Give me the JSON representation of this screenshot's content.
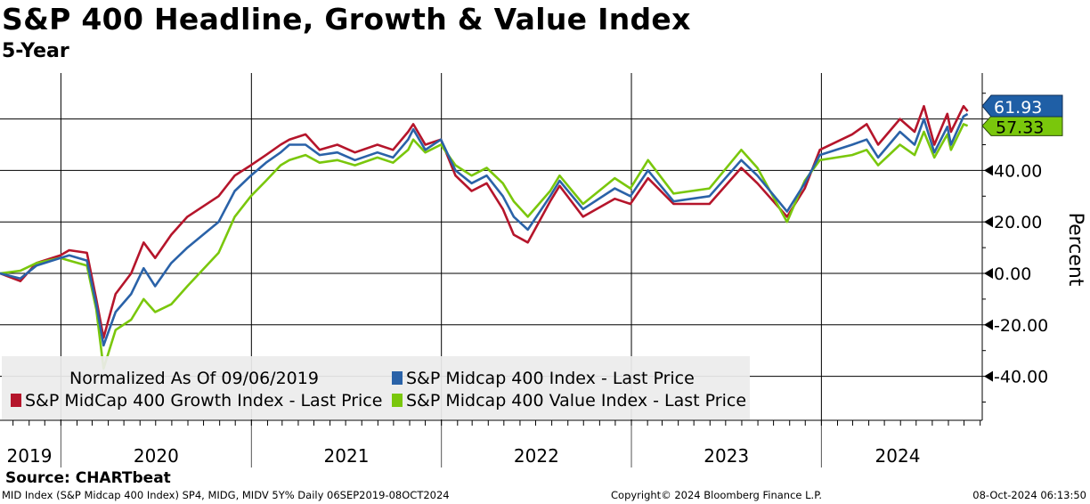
{
  "header": {
    "title": "S&P 400 Headline, Growth & Value Index",
    "subtitle": "5-Year"
  },
  "footer": {
    "source": "Source: CHARTbeat",
    "left": "MID Index (S&P Midcap 400 Index) SP4, MIDG, MIDV 5Y%  Daily 06SEP2019-08OCT2024",
    "center": "Copyright© 2024 Bloomberg Finance L.P.",
    "right": "08-Oct-2024 06:13:50"
  },
  "chart_data": {
    "type": "line",
    "title": "S&P 400 Headline, Growth & Value Index",
    "subtitle": "5-Year",
    "ylabel": "Percent",
    "xlabel": "",
    "ylim": [
      -57,
      80
    ],
    "xlim": [
      "2019-09-06",
      "2024-11-05"
    ],
    "y_ticks": [
      "-40.00",
      "-20.00",
      "0.00",
      "20.00",
      "40.00"
    ],
    "year_labels": [
      "2019",
      "2020",
      "2021",
      "2022",
      "2023",
      "2024"
    ],
    "grid": true,
    "legend_position": "bottom-left",
    "legend_header": "Normalized As Of 09/06/2019",
    "last_values": [
      {
        "label": "61.93",
        "color": "#1f5fa6"
      },
      {
        "label": "57.33",
        "color": "#7ac70c"
      }
    ],
    "series": [
      {
        "name": "S&P Midcap 400 Index - Last Price",
        "color": "#2a62a8",
        "x": [
          "2019-09-06",
          "2019-10-15",
          "2019-11-15",
          "2019-12-31",
          "2020-01-17",
          "2020-02-20",
          "2020-03-09",
          "2020-03-23",
          "2020-04-15",
          "2020-05-15",
          "2020-06-08",
          "2020-06-30",
          "2020-07-31",
          "2020-08-31",
          "2020-10-30",
          "2020-11-30",
          "2020-12-31",
          "2021-01-29",
          "2021-02-26",
          "2021-03-15",
          "2021-04-15",
          "2021-05-12",
          "2021-06-15",
          "2021-07-19",
          "2021-08-31",
          "2021-09-30",
          "2021-10-29",
          "2021-11-08",
          "2021-12-01",
          "2021-12-31",
          "2022-01-28",
          "2022-02-28",
          "2022-03-29",
          "2022-04-29",
          "2022-05-20",
          "2022-06-16",
          "2022-07-29",
          "2022-08-16",
          "2022-09-30",
          "2022-11-30",
          "2022-12-30",
          "2023-02-02",
          "2023-03-23",
          "2023-05-31",
          "2023-07-31",
          "2023-08-31",
          "2023-10-27",
          "2023-11-30",
          "2023-12-29",
          "2024-02-29",
          "2024-03-28",
          "2024-04-19",
          "2024-05-31",
          "2024-06-28",
          "2024-07-16",
          "2024-08-05",
          "2024-08-30",
          "2024-09-06",
          "2024-09-30",
          "2024-10-08"
        ],
        "values": [
          0,
          -2,
          3,
          6,
          7,
          5,
          -12,
          -28,
          -15,
          -8,
          2,
          -5,
          4,
          10,
          20,
          32,
          38,
          43,
          47,
          50,
          50,
          46,
          47,
          44,
          47,
          45,
          52,
          56,
          48,
          52,
          40,
          35,
          38,
          30,
          22,
          17,
          30,
          36,
          25,
          33,
          30,
          40,
          28,
          30,
          44,
          38,
          24,
          35,
          46,
          50,
          52,
          45,
          55,
          50,
          60,
          47,
          57,
          50,
          61,
          61.93
        ]
      },
      {
        "name": "S&P MidCap 400 Growth Index - Last Price",
        "color": "#b5152b",
        "x": [
          "2019-09-06",
          "2019-10-15",
          "2019-11-15",
          "2019-12-31",
          "2020-01-17",
          "2020-02-20",
          "2020-03-09",
          "2020-03-23",
          "2020-04-15",
          "2020-05-15",
          "2020-06-08",
          "2020-06-30",
          "2020-07-31",
          "2020-08-31",
          "2020-10-30",
          "2020-11-30",
          "2020-12-31",
          "2021-01-29",
          "2021-02-26",
          "2021-03-15",
          "2021-04-15",
          "2021-05-12",
          "2021-06-15",
          "2021-07-19",
          "2021-08-31",
          "2021-09-30",
          "2021-10-29",
          "2021-11-08",
          "2021-12-01",
          "2021-12-31",
          "2022-01-28",
          "2022-02-28",
          "2022-03-29",
          "2022-04-29",
          "2022-05-20",
          "2022-06-16",
          "2022-07-29",
          "2022-08-16",
          "2022-09-30",
          "2022-11-30",
          "2022-12-30",
          "2023-02-02",
          "2023-03-23",
          "2023-05-31",
          "2023-07-31",
          "2023-08-31",
          "2023-10-27",
          "2023-11-30",
          "2023-12-29",
          "2024-02-29",
          "2024-03-28",
          "2024-04-19",
          "2024-05-31",
          "2024-06-28",
          "2024-07-16",
          "2024-08-05",
          "2024-08-30",
          "2024-09-06",
          "2024-09-30",
          "2024-10-08"
        ],
        "values": [
          0,
          -3,
          4,
          7,
          9,
          8,
          -10,
          -25,
          -8,
          0,
          12,
          6,
          15,
          22,
          30,
          38,
          42,
          46,
          50,
          52,
          54,
          48,
          50,
          47,
          50,
          48,
          55,
          58,
          50,
          52,
          38,
          32,
          35,
          25,
          15,
          12,
          28,
          34,
          22,
          29,
          27,
          37,
          27,
          27,
          41,
          35,
          22,
          33,
          48,
          54,
          58,
          50,
          60,
          55,
          65,
          50,
          62,
          55,
          65,
          63
        ]
      },
      {
        "name": "S&P Midcap 400 Value Index - Last Price",
        "color": "#7ac70c",
        "x": [
          "2019-09-06",
          "2019-10-15",
          "2019-11-15",
          "2019-12-31",
          "2020-01-17",
          "2020-02-20",
          "2020-03-09",
          "2020-03-23",
          "2020-04-15",
          "2020-05-15",
          "2020-06-08",
          "2020-06-30",
          "2020-07-31",
          "2020-08-31",
          "2020-10-30",
          "2020-11-30",
          "2020-12-31",
          "2021-01-29",
          "2021-02-26",
          "2021-03-15",
          "2021-04-15",
          "2021-05-12",
          "2021-06-15",
          "2021-07-19",
          "2021-08-31",
          "2021-09-30",
          "2021-10-29",
          "2021-11-08",
          "2021-12-01",
          "2021-12-31",
          "2022-01-28",
          "2022-02-28",
          "2022-03-29",
          "2022-04-29",
          "2022-05-20",
          "2022-06-16",
          "2022-07-29",
          "2022-08-16",
          "2022-09-30",
          "2022-11-30",
          "2022-12-30",
          "2023-02-02",
          "2023-03-23",
          "2023-05-31",
          "2023-07-31",
          "2023-08-31",
          "2023-10-27",
          "2023-11-30",
          "2023-12-29",
          "2024-02-29",
          "2024-03-28",
          "2024-04-19",
          "2024-05-31",
          "2024-06-28",
          "2024-07-16",
          "2024-08-05",
          "2024-08-30",
          "2024-09-06",
          "2024-09-30",
          "2024-10-08"
        ],
        "values": [
          0,
          1,
          4,
          6,
          5,
          3,
          -14,
          -37,
          -22,
          -18,
          -10,
          -15,
          -12,
          -5,
          8,
          22,
          30,
          36,
          42,
          44,
          46,
          43,
          44,
          42,
          45,
          43,
          48,
          52,
          47,
          50,
          42,
          38,
          41,
          35,
          28,
          22,
          32,
          38,
          27,
          37,
          33,
          44,
          31,
          33,
          48,
          41,
          20,
          36,
          44,
          46,
          48,
          42,
          50,
          46,
          55,
          45,
          54,
          48,
          58,
          57.33
        ]
      }
    ]
  }
}
